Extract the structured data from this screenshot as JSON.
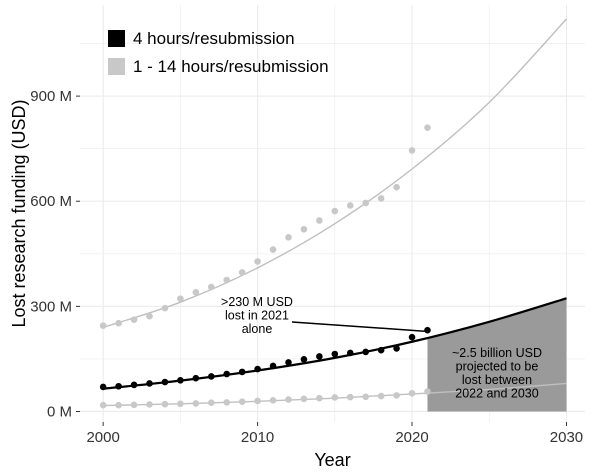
{
  "chart_data": {
    "type": "scatter",
    "title": "",
    "xlabel": "Year",
    "ylabel": "Lost research funding (USD)",
    "xlim": [
      1998.5,
      2031.2
    ],
    "ylim": [
      -30,
      1160
    ],
    "x_ticks": [
      2000,
      2010,
      2020,
      2030
    ],
    "x_tick_labels": [
      "2000",
      "2010",
      "2020",
      "2030"
    ],
    "y_ticks": [
      0,
      300,
      600,
      900
    ],
    "y_tick_labels": [
      "0 M",
      "300 M",
      "600 M",
      "900 M"
    ],
    "grid": true,
    "legend_position": "top-left",
    "colors": {
      "black_series": "#000000",
      "gray_series": "#c8c8c8",
      "gray_line": "#bfbfbf",
      "projection_fill": "#9a9a9a",
      "grid": "#ebebeb"
    },
    "series": [
      {
        "name": "4 hours/resubmission",
        "color": "#000000",
        "x": [
          2000,
          2001,
          2002,
          2003,
          2004,
          2005,
          2006,
          2007,
          2008,
          2009,
          2010,
          2011,
          2012,
          2013,
          2014,
          2015,
          2016,
          2017,
          2018,
          2019,
          2020,
          2021
        ],
        "values": [
          70,
          72,
          76,
          80,
          84,
          89,
          95,
          100,
          107,
          113,
          121,
          130,
          140,
          149,
          157,
          164,
          167,
          170,
          175,
          180,
          212,
          232
        ],
        "fit_curve": {
          "x": [
            2000,
            2005,
            2010,
            2015,
            2020,
            2025,
            2030
          ],
          "values": [
            65,
            88,
            117,
            153,
            199,
            256,
            323
          ]
        }
      },
      {
        "name": "1 - 14 hours/resubmission",
        "color": "#c8c8c8",
        "x": [
          2000,
          2001,
          2002,
          2003,
          2004,
          2005,
          2006,
          2007,
          2008,
          2009,
          2010,
          2011,
          2012,
          2013,
          2014,
          2015,
          2016,
          2017,
          2018,
          2019,
          2020,
          2021
        ],
        "values": [
          245,
          252,
          262,
          272,
          295,
          322,
          340,
          355,
          375,
          397,
          428,
          462,
          497,
          520,
          545,
          572,
          588,
          595,
          608,
          640,
          745,
          810
        ],
        "fit_curve": {
          "x": [
            2000,
            2005,
            2010,
            2015,
            2020,
            2025,
            2030
          ],
          "values": [
            240,
            312,
            410,
            536,
            692,
            882,
            1120
          ]
        },
        "lower_series": {
          "x": [
            2000,
            2001,
            2002,
            2003,
            2004,
            2005,
            2006,
            2007,
            2008,
            2009,
            2010,
            2011,
            2012,
            2013,
            2014,
            2015,
            2016,
            2017,
            2018,
            2019,
            2020,
            2021
          ],
          "values": [
            18,
            18,
            19,
            20,
            21,
            22,
            23,
            25,
            26,
            28,
            30,
            32,
            34,
            36,
            38,
            40,
            41,
            42,
            44,
            46,
            52,
            57
          ]
        },
        "lower_fit_curve": {
          "x": [
            2000,
            2005,
            2010,
            2015,
            2020,
            2025,
            2030
          ],
          "values": [
            17,
            22,
            29,
            38,
            50,
            63,
            80
          ]
        }
      }
    ],
    "projection_region": {
      "x_start": 2021,
      "x_end": 2030,
      "label": "~2.5 billion USD projected to be lost between 2022 and 2030"
    },
    "annotations": [
      {
        "text_lines": [
          ">230 M USD",
          "lost in 2021",
          "alone"
        ],
        "points_to": {
          "x": 2021,
          "y": 232
        }
      },
      {
        "text_lines": [
          "~2.5 billion USD",
          "projected to be",
          "lost between",
          "2022 and 2030"
        ]
      }
    ]
  }
}
